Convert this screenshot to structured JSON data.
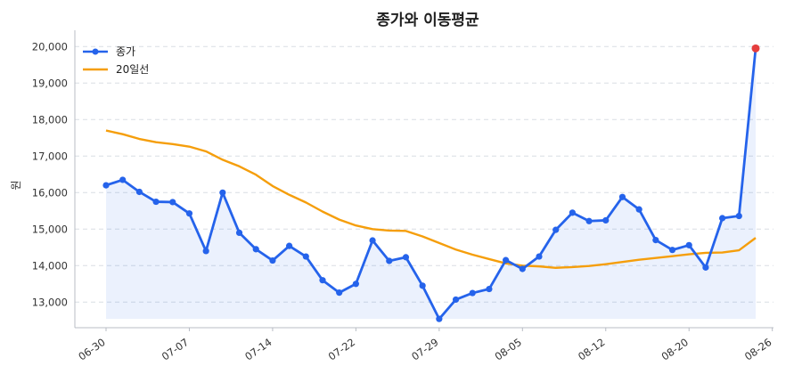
{
  "chart_data": {
    "type": "line",
    "title": "종가와 이동평균",
    "xlabel": "",
    "ylabel": "원",
    "ylim": [
      12300,
      20300
    ],
    "yticks": [
      13000,
      14000,
      15000,
      16000,
      17000,
      18000,
      19000,
      20000
    ],
    "ytick_labels": [
      "13,000",
      "14,000",
      "15,000",
      "16,000",
      "17,000",
      "18,000",
      "19,000",
      "20,000"
    ],
    "xtick_labels": [
      "06-30",
      "07-07",
      "07-14",
      "07-22",
      "07-29",
      "08-05",
      "08-12",
      "08-20",
      "08-26"
    ],
    "xtick_index": [
      0,
      5,
      10,
      15,
      20,
      25,
      30,
      35,
      40
    ],
    "grid": "horizontal dashed",
    "legend_position": "top-left",
    "series": [
      {
        "name": "종가",
        "color": "#2563eb",
        "marker": "circle",
        "fill_area": true,
        "values": [
          16200,
          16350,
          16020,
          15750,
          15740,
          15430,
          14400,
          16000,
          14900,
          14450,
          14140,
          14540,
          14250,
          13600,
          13260,
          13500,
          14690,
          14130,
          14230,
          13450,
          12540,
          13070,
          13250,
          13360,
          14150,
          13910,
          14250,
          14980,
          15450,
          15220,
          15240,
          15880,
          15540,
          14700,
          14430,
          14560,
          13950,
          15300,
          15360,
          19950
        ]
      },
      {
        "name": "20일선",
        "color": "#f59e0b",
        "values": [
          17700,
          17600,
          17470,
          17380,
          17330,
          17260,
          17130,
          16900,
          16720,
          16490,
          16180,
          15940,
          15730,
          15480,
          15260,
          15100,
          15000,
          14960,
          14950,
          14800,
          14620,
          14440,
          14300,
          14180,
          14060,
          14000,
          13980,
          13940,
          13960,
          13990,
          14040,
          14100,
          14160,
          14210,
          14260,
          14310,
          14350,
          14360,
          14420,
          14760
        ]
      }
    ],
    "highlight": {
      "index": 39,
      "color": "#e53e3e"
    }
  }
}
